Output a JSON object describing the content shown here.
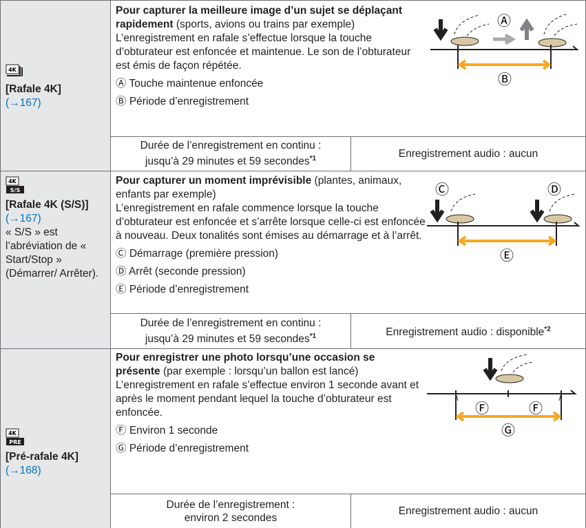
{
  "rows": [
    {
      "icon": "4K",
      "mode": "[Rafale 4K]",
      "ref": "(→167)",
      "lead": "Pour capturer la meilleure image d’un sujet se déplaçant rapidement",
      "lead_detail": "(sports, avions ou trains par exemple)",
      "description": "L’enregistrement en rafale s’effectue lorsque la touche d’obturateur est enfoncée et maintenue. Le son de l’obturateur est émis de façon répétée.",
      "legend": [
        {
          "mark": "Ⓐ",
          "text": "Touche maintenue enfoncée"
        },
        {
          "mark": "Ⓑ",
          "text": "Période d’enregistrement"
        }
      ],
      "duration": "Durée de l’enregistrement en continu :",
      "duration_value": "jusqu’à 29 minutes et 59 secondes",
      "duration_note": "*1",
      "audio": "Enregistrement audio : aucun"
    },
    {
      "icon": "4K",
      "icon_sub": "S/S",
      "mode": "[Rafale 4K (S/S)]",
      "ref": "(→167)",
      "note": "« S/S » est l’abréviation de « Start/Stop » (Démarrer/ Arrêter).",
      "lead": "Pour capturer un moment imprévisible",
      "lead_detail": "(plantes, animaux, enfants par exemple)",
      "description": "L’enregistrement en rafale commence lorsque la touche d’obturateur est enfoncée et s’arrête lorsque celle-ci est enfoncée à nouveau. Deux tonalités sont émises au démarrage et à l’arrêt.",
      "legend": [
        {
          "mark": "Ⓒ",
          "text": "Démarrage (première pression)"
        },
        {
          "mark": "Ⓓ",
          "text": "Arrêt (seconde pression)"
        },
        {
          "mark": "Ⓔ",
          "text": "Période d’enregistrement"
        }
      ],
      "duration": "Durée de l’enregistrement en continu :",
      "duration_value": "jusqu’à 29 minutes et 59 secondes",
      "duration_note": "*1",
      "audio": "Enregistrement audio : disponible",
      "audio_note": "*2"
    },
    {
      "icon": "4K",
      "icon_sub": "PRE",
      "mode": "[Pré-rafale 4K]",
      "ref": "(→168)",
      "lead": "Pour enregistrer une photo lorsqu’une occasion se présente",
      "lead_detail": "(par exemple : lorsqu’un ballon est lancé)",
      "description": "L’enregistrement en rafale s’effectue environ 1 seconde avant et après le moment pendant lequel la touche d’obturateur est enfoncée.",
      "legend": [
        {
          "mark": "Ⓕ",
          "text": "Environ 1 seconde"
        },
        {
          "mark": "Ⓖ",
          "text": "Période d’enregistrement"
        }
      ],
      "duration": "Durée de l’enregistrement :",
      "duration_value": "environ 2 secondes",
      "audio": "Enregistrement audio : aucun"
    }
  ]
}
